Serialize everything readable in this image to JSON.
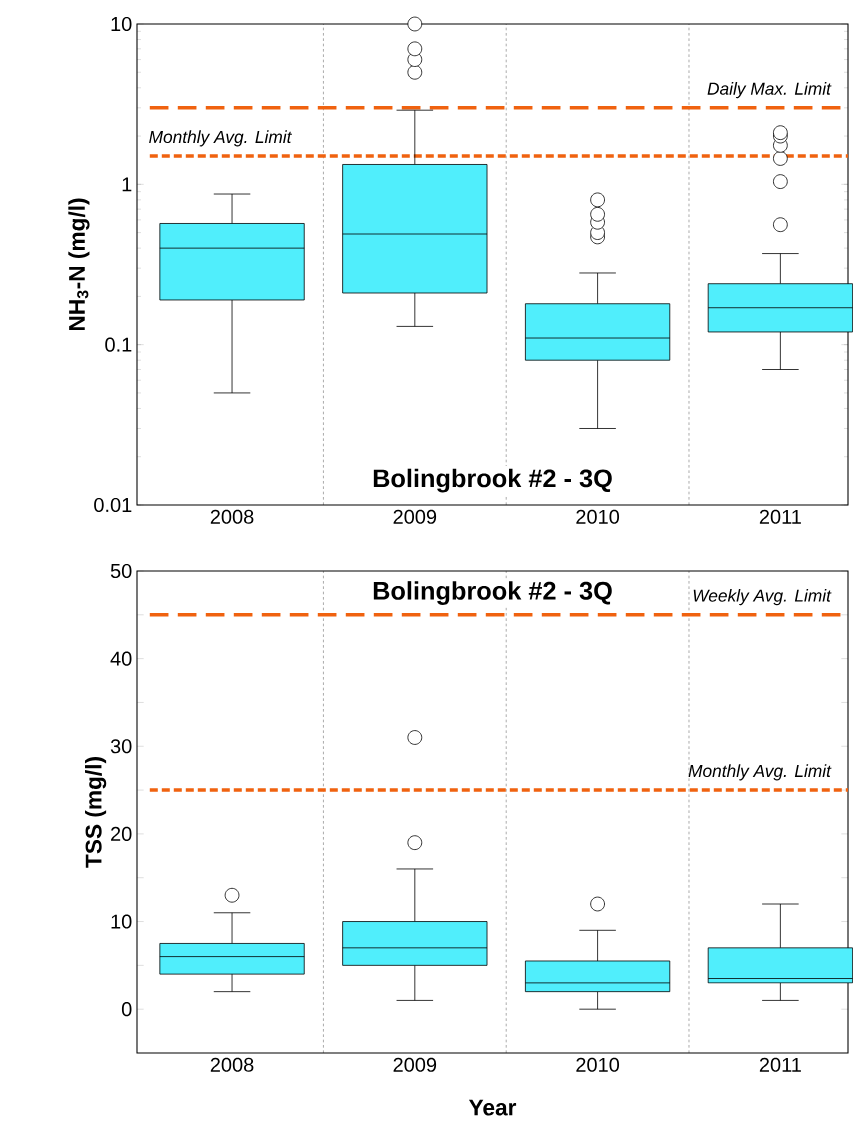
{
  "chart_data": [
    {
      "type": "box",
      "title": "Bolingbrook #2 - 3Q",
      "ylabel": "NH$_{3}$-N (mg/l)",
      "log": "y",
      "grid": "x",
      "marker": "circle",
      "categories": [
        "2008",
        "2009",
        "2010",
        "2011"
      ],
      "ylim": [
        0.01,
        10
      ],
      "yticks": [
        0.01,
        0.1,
        1,
        10
      ],
      "series": [
        {
          "color": "#50eefc",
          "boxes": [
            {
              "low": 0.05,
              "q1": 0.19,
              "median": 0.4,
              "q3": 0.57,
              "high": 0.87
            },
            {
              "low": 0.13,
              "q1": 0.21,
              "median": 0.49,
              "q3": 1.33,
              "high": 2.9,
              "outliers": [
                5,
                6,
                7,
                10
              ]
            },
            {
              "low": 0.03,
              "q1": 0.08,
              "median": 0.11,
              "q3": 0.18,
              "high": 0.28,
              "outliers": [
                0.47,
                0.5,
                0.58,
                0.65,
                0.8
              ]
            },
            {
              "low": 0.07,
              "q1": 0.12,
              "median": 0.17,
              "q3": 0.24,
              "high": 0.37,
              "outliers": [
                0.56,
                1.04,
                1.45,
                1.75,
                2.0,
                2.1
              ]
            }
          ]
        }
      ],
      "ref_lines": [
        {
          "axis": "y",
          "value": 3,
          "label": "Daily Max. Limit",
          "color": "#f0620f",
          "line_style": "dashed"
        },
        {
          "axis": "y",
          "value": 1.5,
          "label": "Monthly Avg. Limit",
          "color": "#f0620f",
          "line_style": "dotted"
        }
      ]
    },
    {
      "type": "box",
      "title": "Bolingbrook #2 - 3Q",
      "xlabel": "Year",
      "ylabel": "TSS (mg/l)",
      "grid": "x",
      "marker": "circle",
      "categories": [
        "2008",
        "2009",
        "2010",
        "2011"
      ],
      "ylim": [
        -5,
        50
      ],
      "yticks": [
        0,
        {
          "value": 5,
          "label": null
        },
        10,
        {
          "value": 15,
          "label": null
        },
        20,
        {
          "value": 25,
          "label": null
        },
        30,
        {
          "value": 35,
          "label": null
        },
        40,
        {
          "value": 45,
          "label": null
        },
        50
      ],
      "series": [
        {
          "color": "#50eefc",
          "boxes": [
            {
              "low": 2,
              "q1": 4,
              "median": 6,
              "q3": 7.5,
              "high": 11,
              "outliers": [
                13
              ]
            },
            {
              "low": 1,
              "q1": 5,
              "median": 7,
              "q3": 10,
              "high": 16,
              "outliers": [
                19,
                31
              ]
            },
            {
              "low": 0,
              "q1": 2,
              "median": 3,
              "q3": 5.5,
              "high": 9,
              "outliers": [
                12
              ]
            },
            {
              "low": 1,
              "q1": 3,
              "median": 3.5,
              "q3": 7,
              "high": 12
            }
          ]
        }
      ],
      "ref_lines": [
        {
          "axis": "y",
          "value": 45,
          "label": "Weekly Avg. Limit",
          "color": "#f0620f",
          "line_style": "dashed"
        },
        {
          "axis": "y",
          "value": 25,
          "label": "Monthly Avg. Limit",
          "color": "#f0620f",
          "line_style": "dotted"
        }
      ]
    }
  ]
}
